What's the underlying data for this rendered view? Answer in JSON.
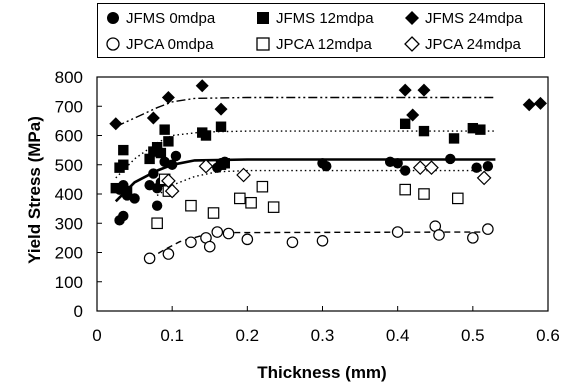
{
  "chart_data": {
    "type": "scatter",
    "title": "",
    "xlabel": "Thickness (mm)",
    "ylabel": "Yield Stress (MPa)",
    "xlim": [
      0,
      0.6
    ],
    "ylim": [
      0,
      800
    ],
    "xticks": [
      0,
      0.1,
      0.2,
      0.3,
      0.4,
      0.5,
      0.6
    ],
    "xtick_labels": [
      "0",
      "0.1",
      "0.2",
      "0.3",
      "0.4",
      "0.5",
      "0.6"
    ],
    "yticks": [
      0,
      100,
      200,
      300,
      400,
      500,
      600,
      700,
      800
    ],
    "ytick_labels": [
      "0",
      "100",
      "200",
      "300",
      "400",
      "500",
      "600",
      "700",
      "800"
    ],
    "grid": false,
    "legend_position": "top",
    "series": [
      {
        "name": "JFMS 0mdpa",
        "marker": "circle-filled",
        "points": [
          [
            0.03,
            310
          ],
          [
            0.035,
            325
          ],
          [
            0.03,
            415
          ],
          [
            0.035,
            430
          ],
          [
            0.04,
            395
          ],
          [
            0.05,
            385
          ],
          [
            0.07,
            430
          ],
          [
            0.075,
            470
          ],
          [
            0.08,
            360
          ],
          [
            0.08,
            420
          ],
          [
            0.085,
            440
          ],
          [
            0.09,
            510
          ],
          [
            0.1,
            500
          ],
          [
            0.105,
            530
          ],
          [
            0.16,
            490
          ],
          [
            0.165,
            505
          ],
          [
            0.17,
            510
          ],
          [
            0.3,
            505
          ],
          [
            0.305,
            495
          ],
          [
            0.39,
            510
          ],
          [
            0.4,
            505
          ],
          [
            0.41,
            480
          ],
          [
            0.47,
            520
          ],
          [
            0.505,
            490
          ],
          [
            0.52,
            495
          ]
        ]
      },
      {
        "name": "JFMS 12mdpa",
        "marker": "square-filled",
        "points": [
          [
            0.025,
            420
          ],
          [
            0.03,
            490
          ],
          [
            0.035,
            500
          ],
          [
            0.035,
            550
          ],
          [
            0.04,
            410
          ],
          [
            0.07,
            520
          ],
          [
            0.075,
            545
          ],
          [
            0.08,
            560
          ],
          [
            0.085,
            540
          ],
          [
            0.09,
            620
          ],
          [
            0.095,
            580
          ],
          [
            0.14,
            610
          ],
          [
            0.145,
            600
          ],
          [
            0.165,
            630
          ],
          [
            0.165,
            500
          ],
          [
            0.17,
            505
          ],
          [
            0.41,
            640
          ],
          [
            0.435,
            615
          ],
          [
            0.475,
            590
          ],
          [
            0.5,
            625
          ],
          [
            0.51,
            620
          ]
        ]
      },
      {
        "name": "JFMS 24mdpa",
        "marker": "diamond-filled",
        "points": [
          [
            0.025,
            640
          ],
          [
            0.075,
            660
          ],
          [
            0.095,
            730
          ],
          [
            0.14,
            770
          ],
          [
            0.165,
            690
          ],
          [
            0.41,
            755
          ],
          [
            0.42,
            670
          ],
          [
            0.435,
            755
          ],
          [
            0.575,
            705
          ],
          [
            0.59,
            710
          ]
        ]
      },
      {
        "name": "JPCA 0mdpa",
        "marker": "circle-open",
        "points": [
          [
            0.07,
            180
          ],
          [
            0.095,
            195
          ],
          [
            0.125,
            235
          ],
          [
            0.145,
            250
          ],
          [
            0.15,
            220
          ],
          [
            0.16,
            270
          ],
          [
            0.175,
            265
          ],
          [
            0.2,
            245
          ],
          [
            0.26,
            235
          ],
          [
            0.3,
            240
          ],
          [
            0.4,
            270
          ],
          [
            0.45,
            290
          ],
          [
            0.455,
            260
          ],
          [
            0.5,
            250
          ],
          [
            0.52,
            280
          ]
        ]
      },
      {
        "name": "JPCA 12mdpa",
        "marker": "square-open",
        "points": [
          [
            0.08,
            300
          ],
          [
            0.09,
            450
          ],
          [
            0.095,
            410
          ],
          [
            0.125,
            360
          ],
          [
            0.155,
            335
          ],
          [
            0.19,
            385
          ],
          [
            0.205,
            370
          ],
          [
            0.22,
            425
          ],
          [
            0.235,
            355
          ],
          [
            0.41,
            415
          ],
          [
            0.435,
            400
          ],
          [
            0.48,
            385
          ]
        ]
      },
      {
        "name": "JPCA 24mdpa",
        "marker": "diamond-open",
        "points": [
          [
            0.095,
            445
          ],
          [
            0.1,
            410
          ],
          [
            0.145,
            495
          ],
          [
            0.195,
            465
          ],
          [
            0.43,
            490
          ],
          [
            0.445,
            490
          ],
          [
            0.515,
            455
          ]
        ]
      }
    ],
    "trend_lines": [
      {
        "series": "JFMS 0mdpa",
        "style": "solid-thick",
        "points": [
          [
            0.025,
            375
          ],
          [
            0.05,
            440
          ],
          [
            0.08,
            480
          ],
          [
            0.1,
            500
          ],
          [
            0.13,
            515
          ],
          [
            0.2,
            518
          ],
          [
            0.53,
            518
          ]
        ]
      },
      {
        "series": "JFMS 12mdpa",
        "style": "dotted",
        "points": [
          [
            0.025,
            455
          ],
          [
            0.05,
            520
          ],
          [
            0.08,
            575
          ],
          [
            0.1,
            600
          ],
          [
            0.14,
            612
          ],
          [
            0.2,
            615
          ],
          [
            0.53,
            615
          ]
        ]
      },
      {
        "series": "JFMS 24mdpa",
        "style": "dash-dot-dot",
        "points": [
          [
            0.025,
            630
          ],
          [
            0.05,
            660
          ],
          [
            0.08,
            695
          ],
          [
            0.1,
            715
          ],
          [
            0.13,
            727
          ],
          [
            0.2,
            730
          ],
          [
            0.53,
            730
          ]
        ]
      },
      {
        "series": "JPCA 0mdpa",
        "style": "dashed",
        "points": [
          [
            0.07,
            180
          ],
          [
            0.09,
            210
          ],
          [
            0.11,
            237
          ],
          [
            0.14,
            258
          ],
          [
            0.18,
            268
          ],
          [
            0.52,
            270
          ]
        ]
      },
      {
        "series": "JPCA 24mdpa",
        "style": "dotted",
        "points": [
          [
            0.08,
            395
          ],
          [
            0.1,
            430
          ],
          [
            0.13,
            460
          ],
          [
            0.16,
            476
          ],
          [
            0.2,
            480
          ],
          [
            0.52,
            480
          ]
        ]
      }
    ]
  }
}
